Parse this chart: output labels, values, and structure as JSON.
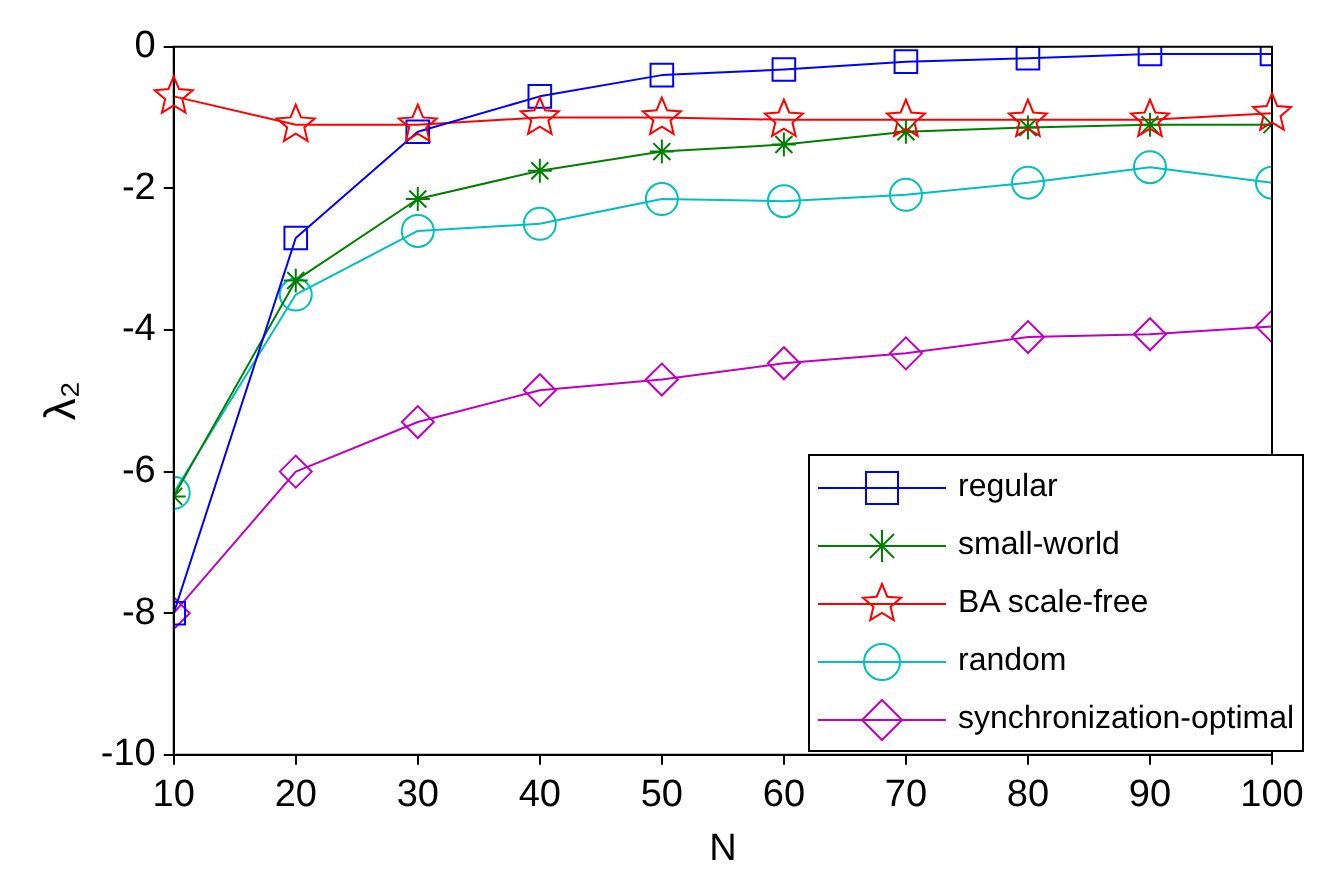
{
  "chart_data": {
    "type": "line",
    "xlabel": "N",
    "ylabel": "λ₂",
    "x": [
      10,
      20,
      30,
      40,
      50,
      60,
      70,
      80,
      90,
      100
    ],
    "xlim": [
      10,
      100
    ],
    "xticks": [
      10,
      20,
      30,
      40,
      50,
      60,
      70,
      80,
      90,
      100
    ],
    "ylim": [
      -10,
      0
    ],
    "yticks": [
      -10,
      -8,
      -6,
      -4,
      -2,
      0
    ],
    "grid": false,
    "legend": "bottom right",
    "series": [
      {
        "name": "regular",
        "color": "#0000ff",
        "marker": "square",
        "values": [
          -8,
          -2.7,
          -1.2,
          -0.7,
          -0.4,
          -0.32,
          -0.21,
          -0.16,
          -0.1,
          -0.1
        ]
      },
      {
        "name": "small-world",
        "color": "#008000",
        "marker": "cross",
        "values": [
          -6.35,
          -3.3,
          -2.15,
          -1.75,
          -1.48,
          -1.38,
          -1.2,
          -1.14,
          -1.1,
          -1.1
        ]
      },
      {
        "name": "BA scale-free",
        "color": "#ff0000",
        "marker": "star",
        "values": [
          -0.7,
          -1.1,
          -1.1,
          -1.0,
          -1.0,
          -1.03,
          -1.03,
          -1.03,
          -1.03,
          -0.94
        ]
      },
      {
        "name": "random",
        "color": "#00bfbf",
        "marker": "circle",
        "values": [
          -6.3,
          -3.5,
          -2.6,
          -2.5,
          -2.15,
          -2.18,
          -2.09,
          -1.92,
          -1.7,
          -1.92
        ]
      },
      {
        "name": "synchronization-optimal",
        "color": "#bf00bf",
        "marker": "diamond",
        "values": [
          -8,
          -6,
          -5.3,
          -4.85,
          -4.7,
          -4.47,
          -4.33,
          -4.1,
          -4.06,
          -3.95
        ]
      }
    ]
  }
}
